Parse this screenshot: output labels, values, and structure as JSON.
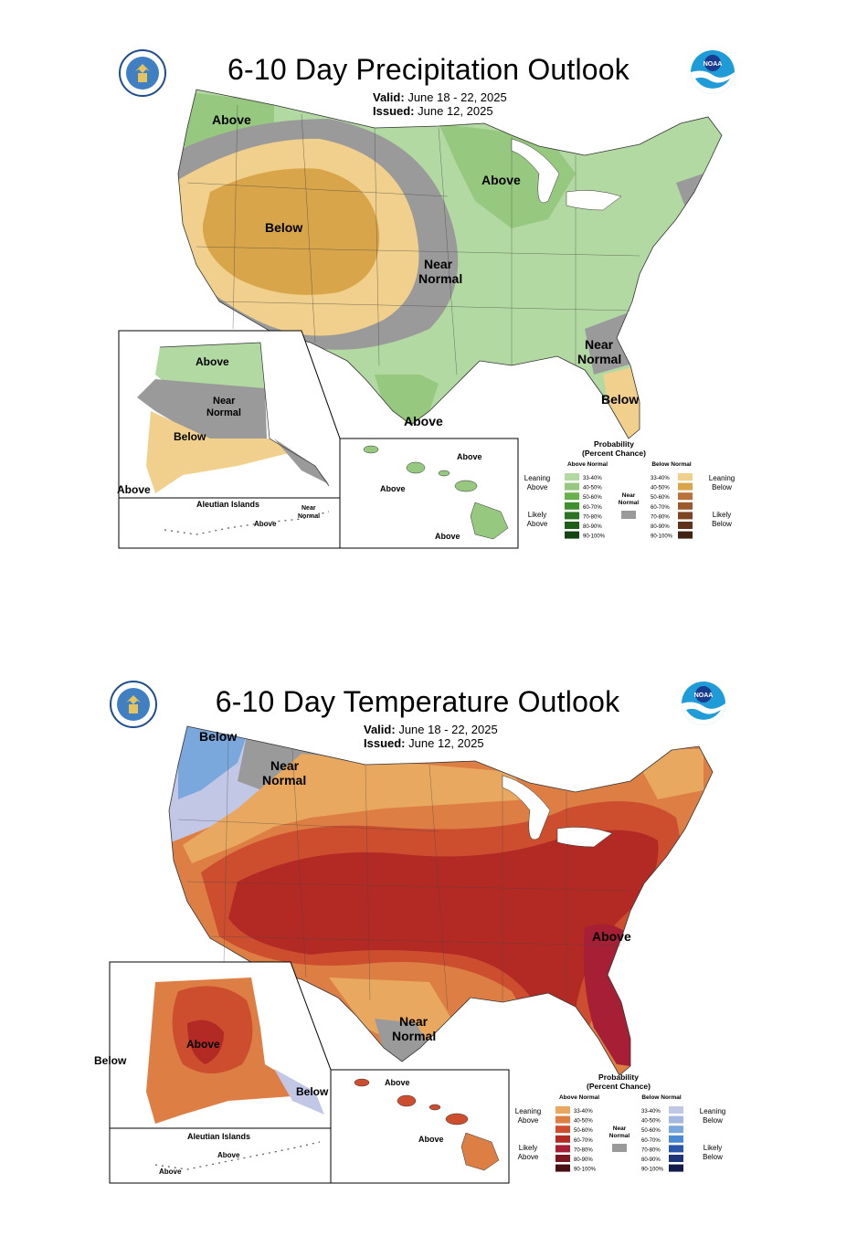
{
  "precip": {
    "title": "6-10 Day Precipitation Outlook",
    "valid_label": "Valid:",
    "valid_value": "June 18 - 22, 2025",
    "issued_label": "Issued:",
    "issued_value": "June 12, 2025",
    "map_labels": {
      "above_nw": "Above",
      "above_mw": "Above",
      "below_center": "Below",
      "near": "Near",
      "normal": "Normal",
      "near_se": "Near",
      "normal_se": "Normal",
      "below_fl": "Below",
      "above_tx": "Above"
    },
    "alaska_labels": {
      "above": "Above",
      "near": "Near",
      "normal": "Normal",
      "below": "Below",
      "above_sw": "Above"
    },
    "aleutian": {
      "title": "Aleutian Islands",
      "above": "Above",
      "near": "Near",
      "normal": "Normal"
    },
    "hawaii_labels": {
      "above_1": "Above",
      "above_2": "Above",
      "above_3": "Above"
    },
    "legend": {
      "title_1": "Probability",
      "title_2": "(Percent Chance)",
      "above_header": "Above Normal",
      "below_header": "Below Normal",
      "leaning": "Leaning",
      "likely": "Likely",
      "above": "Above",
      "below": "Below",
      "near": "Near",
      "normal": "Normal",
      "bins": [
        "33-40%",
        "40-50%",
        "50-60%",
        "60-70%",
        "70-80%",
        "80-90%",
        "90-100%"
      ],
      "above_colors": [
        "#b3d9a3",
        "#96c97f",
        "#6ab04c",
        "#3e8f2d",
        "#2b7323",
        "#1e5c1a",
        "#134213"
      ],
      "below_colors": [
        "#f0d08c",
        "#d9a54a",
        "#b9733a",
        "#9b5a2c",
        "#7d4424",
        "#5e321b",
        "#3f2213"
      ],
      "near_color": "#9a9a9a"
    }
  },
  "temp": {
    "title": "6-10 Day Temperature Outlook",
    "valid_label": "Valid:",
    "valid_value": "June 18 - 22, 2025",
    "issued_label": "Issued:",
    "issued_value": "June 12, 2025",
    "map_labels": {
      "below_nw": "Below",
      "near": "Near",
      "normal": "Normal",
      "above_se": "Above",
      "near_tx": "Near",
      "normal_tx": "Normal"
    },
    "alaska_labels": {
      "above": "Above",
      "below_w": "Below",
      "below_se": "Below"
    },
    "aleutian": {
      "title": "Aleutian Islands",
      "above_1": "Above",
      "above_2": "Above"
    },
    "hawaii_labels": {
      "above_1": "Above",
      "above_2": "Above"
    },
    "legend": {
      "title_1": "Probability",
      "title_2": "(Percent Chance)",
      "above_header": "Above Normal",
      "below_header": "Below Normal",
      "leaning": "Leaning",
      "likely": "Likely",
      "above": "Above",
      "below": "Below",
      "near": "Near",
      "normal": "Normal",
      "bins": [
        "33-40%",
        "40-50%",
        "50-60%",
        "60-70%",
        "70-80%",
        "80-90%",
        "90-100%"
      ],
      "above_colors": [
        "#e8a860",
        "#dd7f45",
        "#cc4e2e",
        "#b32a25",
        "#a61f35",
        "#7a1720",
        "#4a0f13"
      ],
      "below_colors": [
        "#c2c7e6",
        "#a6b8e0",
        "#7aa8dc",
        "#4b8ad2",
        "#2a56a8",
        "#1d3478",
        "#141d4a"
      ],
      "near_color": "#9a9a9a"
    }
  }
}
